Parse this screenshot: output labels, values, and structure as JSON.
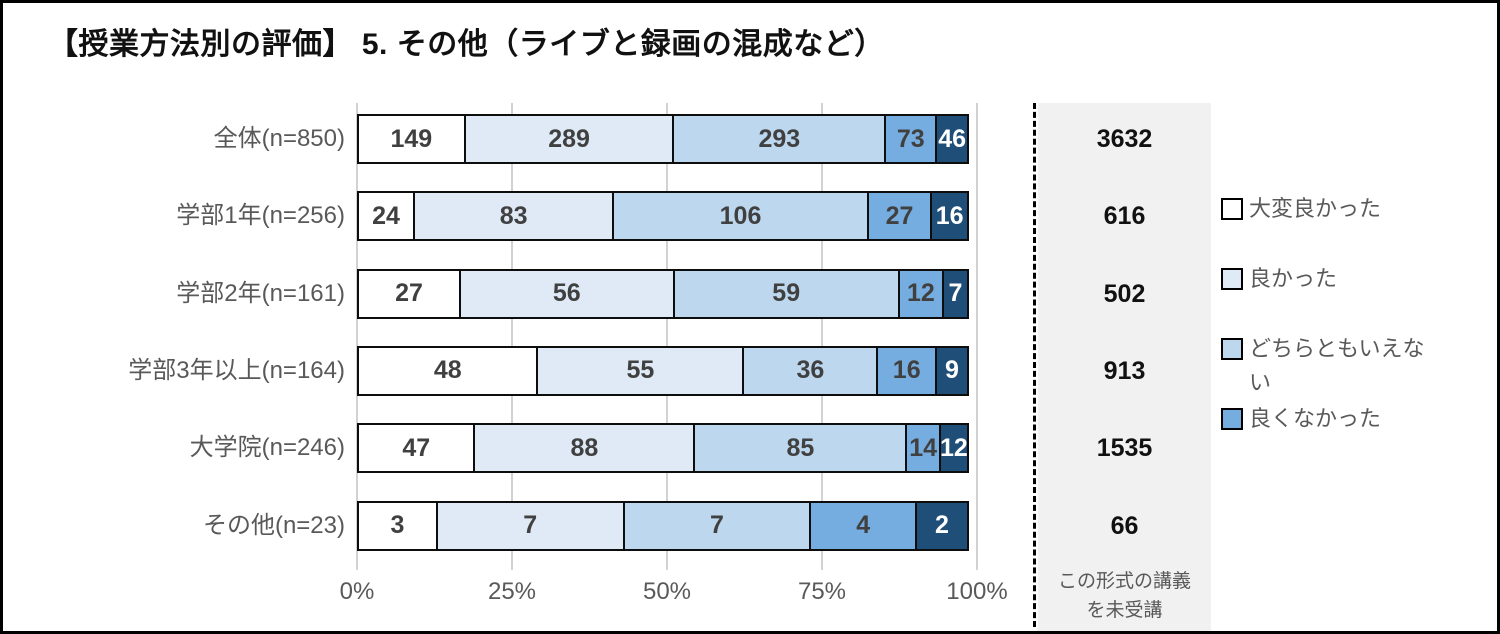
{
  "title": "【授業方法別の評価】 5. その他（ライブと録画の混成など）",
  "chart_data": {
    "type": "bar",
    "orientation": "horizontal",
    "stacked": true,
    "stack_mode": "percent",
    "categories": [
      "全体(n=850)",
      "学部1年(n=256)",
      "学部2年(n=161)",
      "学部3年以上(n=164)",
      "大学院(n=246)",
      "その他(n=23)"
    ],
    "series": [
      {
        "name": "大変良かった",
        "color": "#ffffff",
        "values": [
          149,
          24,
          27,
          48,
          47,
          3
        ]
      },
      {
        "name": "良かった",
        "color": "#dfeaf6",
        "values": [
          289,
          83,
          56,
          55,
          88,
          7
        ]
      },
      {
        "name": "どちらともいえない",
        "color": "#bdd7ee",
        "values": [
          293,
          106,
          59,
          36,
          85,
          7
        ]
      },
      {
        "name": "良くなかった",
        "color": "#76ade0",
        "values": [
          73,
          27,
          12,
          16,
          14,
          4
        ]
      },
      {
        "name": "",
        "color": "#1f4e79",
        "values": [
          46,
          16,
          7,
          9,
          12,
          2
        ]
      }
    ],
    "x_axis": {
      "ticks": [
        "0%",
        "25%",
        "50%",
        "75%",
        "100%"
      ],
      "range": [
        0,
        100
      ]
    },
    "gridlines": "vertical",
    "legend_position": "right"
  },
  "legend": {
    "items": [
      {
        "label": "大変良かった",
        "color": "#ffffff"
      },
      {
        "label": "良かった",
        "color": "#dfeaf6"
      },
      {
        "label": "どちらともいえない",
        "color": "#bdd7ee"
      },
      {
        "label": "良くなかった",
        "color": "#76ade0"
      }
    ]
  },
  "side_panel": {
    "values": [
      "3632",
      "616",
      "502",
      "913",
      "1535",
      "66"
    ],
    "caption_line1": "この形式の講義",
    "caption_line2": "を未受講"
  },
  "colors": {
    "panel_background": "#f1f1f1",
    "label_text": "#595959",
    "segment_text": "#404040",
    "segment_text_on_dark": "#ffffff",
    "segment_border": "#0d0d0d",
    "gridline": "#d2d2d2",
    "dark_segment": "#1f4e79"
  }
}
